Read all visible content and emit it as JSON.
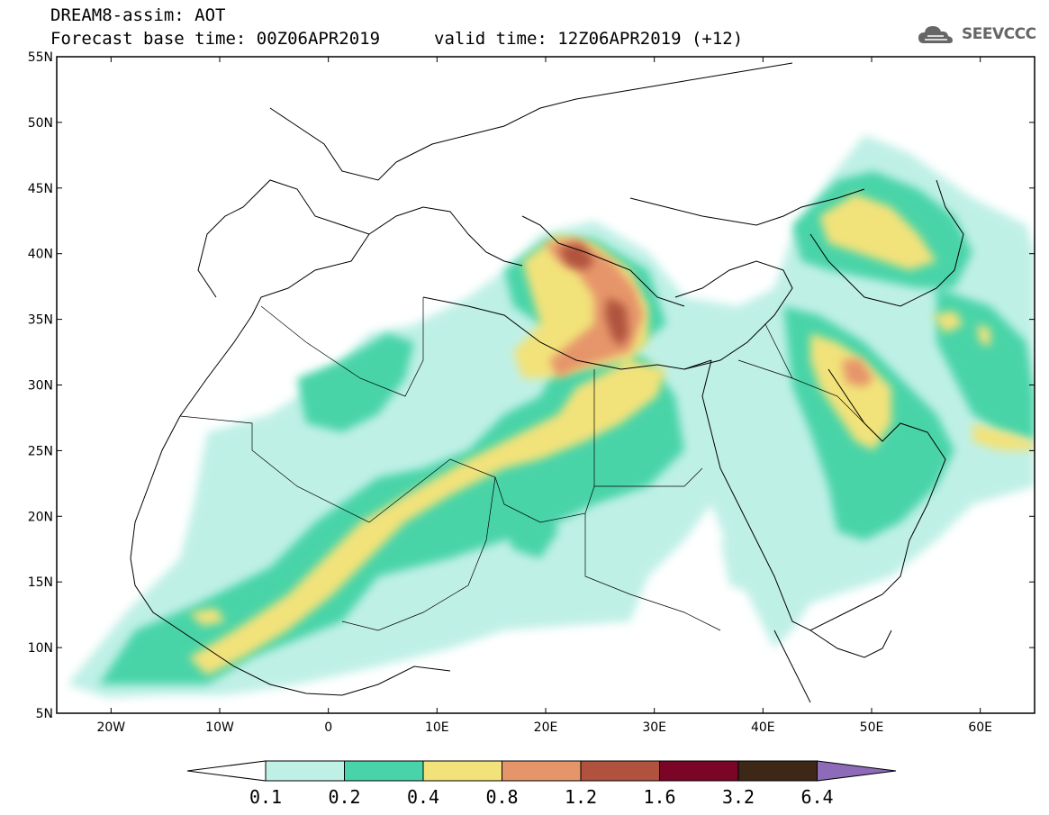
{
  "header": {
    "model_title": "DREAM8-assim: AOT",
    "base_time": "Forecast base time: 00Z06APR2019",
    "valid_time": "valid time: 12Z06APR2019 (+12)",
    "logo_text": "SEEVCCC"
  },
  "map": {
    "lon_range": [
      -25,
      65
    ],
    "lat_range": [
      5,
      55
    ],
    "lat_ticks": [
      "55N",
      "50N",
      "45N",
      "40N",
      "35N",
      "30N",
      "25N",
      "20N",
      "15N",
      "10N",
      "5N"
    ],
    "lon_ticks": [
      "20W",
      "10W",
      "0",
      "10E",
      "20E",
      "30E",
      "40E",
      "50E",
      "60E"
    ]
  },
  "colorbar": {
    "labels": [
      "0.1",
      "0.2",
      "0.4",
      "0.8",
      "1.2",
      "1.6",
      "3.2",
      "6.4"
    ],
    "colors": [
      "#ffffff",
      "#bff0e6",
      "#48d4a8",
      "#f2e27a",
      "#e6956a",
      "#b0523e",
      "#7a0526",
      "#3d2716",
      "#8e6bb8"
    ]
  }
}
